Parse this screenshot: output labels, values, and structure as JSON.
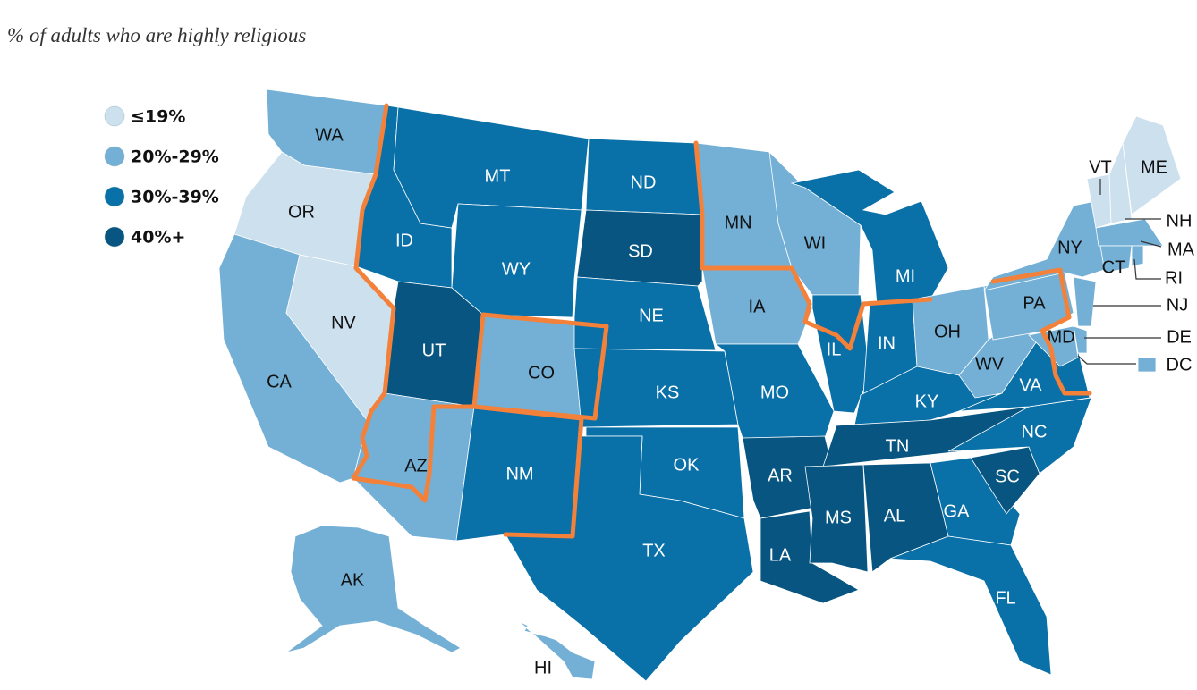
{
  "title": "% of adults who are highly religious",
  "legend": [
    {
      "label": "≤19%",
      "color": "#cde0ee"
    },
    {
      "label": "20%-29%",
      "color": "#74b0d6"
    },
    {
      "label": "30%-39%",
      "color": "#0a70a8"
    },
    {
      "label": "40%+",
      "color": "#075580"
    }
  ],
  "states": [
    {
      "label": "WA",
      "category": 1
    },
    {
      "label": "OR",
      "category": 0
    },
    {
      "label": "CA",
      "category": 1
    },
    {
      "label": "NV",
      "category": 0
    },
    {
      "label": "ID",
      "category": 2
    },
    {
      "label": "MT",
      "category": 2
    },
    {
      "label": "WY",
      "category": 2
    },
    {
      "label": "UT",
      "category": 3
    },
    {
      "label": "CO",
      "category": 1
    },
    {
      "label": "AZ",
      "category": 1
    },
    {
      "label": "NM",
      "category": 2
    },
    {
      "label": "ND",
      "category": 2
    },
    {
      "label": "SD",
      "category": 3
    },
    {
      "label": "NE",
      "category": 2
    },
    {
      "label": "KS",
      "category": 2
    },
    {
      "label": "OK",
      "category": 2
    },
    {
      "label": "TX",
      "category": 2
    },
    {
      "label": "MN",
      "category": 1
    },
    {
      "label": "IA",
      "category": 1
    },
    {
      "label": "MO",
      "category": 2
    },
    {
      "label": "AR",
      "category": 3
    },
    {
      "label": "LA",
      "category": 3
    },
    {
      "label": "WI",
      "category": 1
    },
    {
      "label": "IL",
      "category": 2
    },
    {
      "label": "MI",
      "category": 2
    },
    {
      "label": "IN",
      "category": 2
    },
    {
      "label": "OH",
      "category": 1
    },
    {
      "label": "KY",
      "category": 2
    },
    {
      "label": "TN",
      "category": 3
    },
    {
      "label": "MS",
      "category": 3
    },
    {
      "label": "AL",
      "category": 3
    },
    {
      "label": "GA",
      "category": 2
    },
    {
      "label": "FL",
      "category": 2
    },
    {
      "label": "SC",
      "category": 3
    },
    {
      "label": "NC",
      "category": 2
    },
    {
      "label": "VA",
      "category": 2
    },
    {
      "label": "WV",
      "category": 1
    },
    {
      "label": "PA",
      "category": 1
    },
    {
      "label": "NY",
      "category": 1
    },
    {
      "label": "VT",
      "category": 0
    },
    {
      "label": "NH",
      "category": 0
    },
    {
      "label": "ME",
      "category": 0
    },
    {
      "label": "MA",
      "category": 1
    },
    {
      "label": "RI",
      "category": 1
    },
    {
      "label": "CT",
      "category": 1
    },
    {
      "label": "NJ",
      "category": 1
    },
    {
      "label": "DE",
      "category": 1
    },
    {
      "label": "MD",
      "category": 1
    },
    {
      "label": "DC",
      "category": 1
    },
    {
      "label": "AK",
      "category": 1
    },
    {
      "label": "HI",
      "category": 1
    }
  ]
}
